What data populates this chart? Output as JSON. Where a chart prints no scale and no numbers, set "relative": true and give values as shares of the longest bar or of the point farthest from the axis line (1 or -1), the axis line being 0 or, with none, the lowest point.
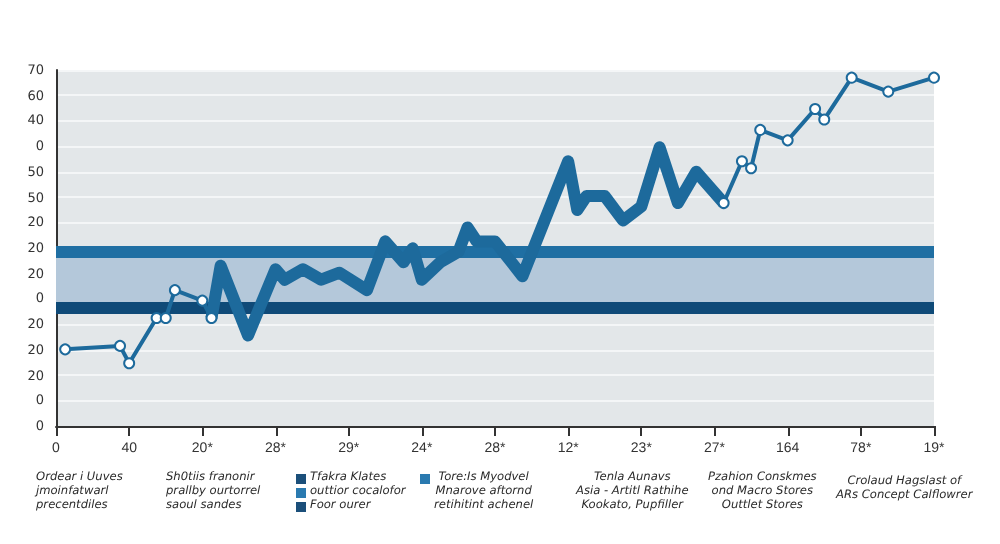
{
  "chart_data": {
    "type": "line",
    "relative": true,
    "categories": [
      "0",
      null,
      null,
      null,
      null,
      null,
      null,
      null,
      "40",
      null,
      null,
      null,
      null,
      null,
      null,
      null,
      "20*",
      null,
      null,
      null,
      null,
      null,
      null,
      null,
      "28*",
      null,
      null,
      null,
      null,
      null,
      null,
      null,
      "29*",
      null,
      null,
      null,
      null,
      null,
      null,
      null,
      "24*",
      null,
      null,
      null,
      null,
      null,
      null,
      null,
      "28*",
      null,
      null,
      null,
      null,
      null,
      null,
      null,
      "12*",
      null,
      null,
      null,
      null,
      null,
      null,
      null,
      "23*",
      null,
      null,
      null,
      null,
      null,
      null,
      null,
      "27*",
      null,
      null,
      null,
      null,
      null,
      null,
      null,
      "164",
      null,
      null,
      null,
      null,
      null,
      null,
      null,
      "78*",
      null,
      null,
      null,
      null,
      null,
      null,
      null,
      "19*"
    ],
    "grid": "y",
    "series": [
      {
        "color": "#1d6a9c",
        "marker": "circle",
        "values": [
          null,
          0.22,
          null,
          null,
          null,
          null,
          null,
          0.23,
          0.18,
          null,
          null,
          0.31,
          0.31,
          0.39,
          null,
          null,
          0.36,
          0.31,
          null,
          null,
          null,
          null,
          null,
          null,
          null,
          null,
          null,
          null,
          null,
          null,
          null,
          null,
          null,
          null,
          null,
          null,
          null,
          null,
          null,
          null,
          null,
          null,
          null,
          null,
          null,
          null,
          null,
          null,
          null,
          null,
          null,
          null,
          null,
          null,
          null,
          null,
          null,
          null,
          null,
          null,
          null,
          null,
          null,
          null,
          null,
          null,
          null,
          null,
          null,
          null,
          null,
          null,
          null,
          null,
          null,
          null,
          null,
          null,
          null,
          null,
          null,
          null,
          null,
          null,
          null,
          null,
          null,
          null,
          null,
          null,
          null,
          null,
          null,
          null,
          null,
          null,
          null
        ]
      },
      {
        "color": "#1d6a9c",
        "marker": "none",
        "values": [
          null,
          null,
          null,
          null,
          null,
          null,
          null,
          null,
          null,
          null,
          null,
          null,
          null,
          null,
          null,
          null,
          null,
          0.31,
          0.46,
          null,
          null,
          0.26,
          null,
          null,
          0.45,
          0.42,
          null,
          0.45,
          null,
          0.42,
          null,
          0.44,
          null,
          null,
          0.39,
          null,
          0.53,
          null,
          0.47,
          0.51,
          0.42,
          null,
          0.47,
          null,
          0.5,
          0.57,
          0.53,
          null,
          0.53,
          null,
          null,
          0.43,
          null,
          null,
          null,
          null,
          0.76,
          0.62,
          0.66,
          null,
          0.66,
          null,
          0.59,
          null,
          0.63,
          null,
          0.8,
          null,
          0.64,
          null,
          0.73,
          null,
          null,
          0.64,
          null,
          null,
          null,
          null,
          null,
          null,
          null,
          null,
          null,
          null,
          null,
          null,
          null,
          null,
          null,
          null,
          null,
          null,
          null,
          null,
          null,
          null,
          null
        ]
      },
      {
        "color": "#1d6a9c",
        "marker": "circle",
        "values": [
          null,
          null,
          null,
          null,
          null,
          null,
          null,
          null,
          null,
          null,
          null,
          null,
          null,
          null,
          null,
          null,
          null,
          null,
          null,
          null,
          null,
          null,
          null,
          null,
          null,
          null,
          null,
          null,
          null,
          null,
          null,
          null,
          null,
          null,
          null,
          null,
          null,
          null,
          null,
          null,
          null,
          null,
          null,
          null,
          null,
          null,
          null,
          null,
          null,
          null,
          null,
          null,
          null,
          null,
          null,
          null,
          null,
          null,
          null,
          null,
          null,
          null,
          null,
          null,
          null,
          null,
          null,
          null,
          null,
          null,
          null,
          null,
          null,
          0.64,
          null,
          0.76,
          0.74,
          0.85,
          null,
          null,
          0.82,
          null,
          null,
          0.91,
          0.88,
          null,
          null,
          1,
          null,
          null,
          null,
          0.96,
          null,
          null,
          null,
          null,
          1
        ]
      }
    ],
    "bands": [
      {
        "axis": "y",
        "from": 0.34,
        "to": 0.5,
        "color": "#b4c8da"
      }
    ],
    "ref_lines": [
      {
        "axis": "y",
        "value": 0.5,
        "color": "#1f6fa3"
      },
      {
        "axis": "y",
        "value": 0.34,
        "color": "#0f4a78"
      }
    ],
    "annotations": [
      "70",
      "60",
      "40",
      "0",
      "50",
      "50",
      "20",
      "20",
      "20",
      "0",
      "20",
      "20",
      "20",
      "0",
      "0",
      "Ordear i Uuves\njmoinfatwarl\nprecentdiles",
      "Sh0tiis franonir\nprallby ourtorrel\nsaoul sandes",
      "Tfakra Klates",
      "outtior cocalofor",
      "Foor ourer",
      "Tore:Is Myodvel\nMnarove aftornd\nretihitint achenel",
      "Tenla Aunavs\nAsia - Artitl Rathihe\nKookato, Pupfiller",
      "Pzahion Conskmes\nond Macro Stores\nOuttlet Stores",
      "Crolaud Hagslast of\nARs Concept Calflowrer"
    ]
  }
}
